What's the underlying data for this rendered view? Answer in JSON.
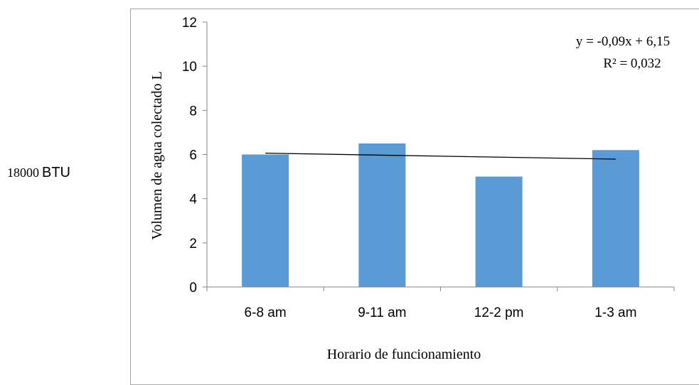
{
  "side_label": {
    "number": "18000",
    "unit": "BTU"
  },
  "chart_data": {
    "type": "bar",
    "categories": [
      "6-8 am",
      "9-11 am",
      "12-2 pm",
      "1-3 am"
    ],
    "values": [
      6.0,
      6.5,
      5.0,
      6.2
    ],
    "xlabel": "Horario de funcionamiento",
    "ylabel": "Volumen de agua colectado L",
    "ylim": [
      0,
      12
    ],
    "yticks": [
      0,
      2,
      4,
      6,
      8,
      10,
      12
    ],
    "grid": false,
    "bar_color": "#5b9bd5",
    "trendline": {
      "type": "linear",
      "equation": "y = -0,09x + 6,15",
      "r_squared": "R² = 0,032",
      "slope": -0.09,
      "intercept": 6.15
    }
  }
}
